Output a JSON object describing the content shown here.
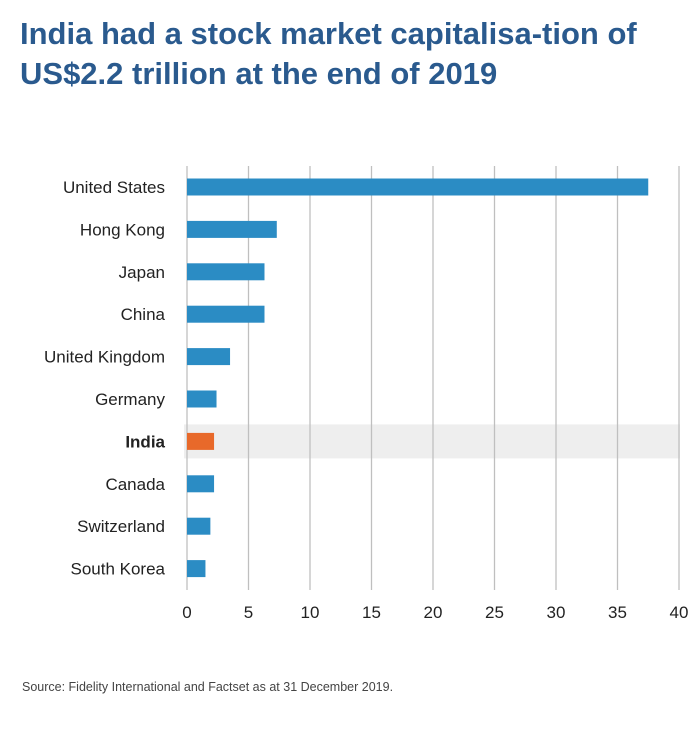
{
  "title": "India had a stock market capitalisa-tion of US$2.2 trillion at the end of 2019",
  "source": "Source: Fidelity International and Factset as at 31 December 2019.",
  "colors": {
    "bar": "#2b8cc4",
    "highlight_bar": "#e8692a",
    "highlight_band": "#eeeeee",
    "grid": "#bfbfbf",
    "title": "#2a5a8e"
  },
  "chart_data": {
    "type": "bar",
    "orientation": "horizontal",
    "categories": [
      "United States",
      "Hong Kong",
      "Japan",
      "China",
      "United Kingdom",
      "Germany",
      "India",
      "Canada",
      "Switzerland",
      "South Korea"
    ],
    "values": [
      37.5,
      7.3,
      6.3,
      6.3,
      3.5,
      2.4,
      2.2,
      2.2,
      1.9,
      1.5
    ],
    "highlight": "India",
    "xlim": [
      0,
      40
    ],
    "xticks": [
      0,
      5,
      10,
      15,
      20,
      25,
      30,
      35,
      40
    ],
    "grid": true
  }
}
